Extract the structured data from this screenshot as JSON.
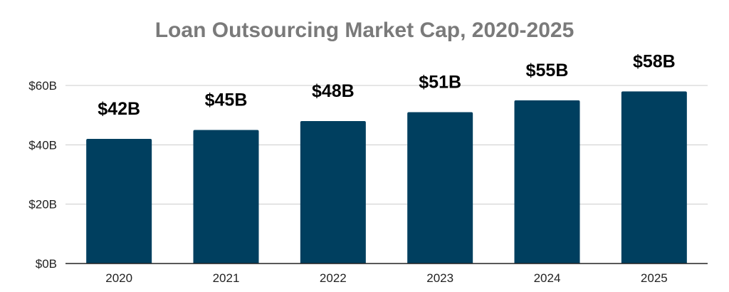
{
  "chart_data": {
    "type": "bar",
    "title": "Loan Outsourcing Market Cap, 2020-2025",
    "xlabel": "",
    "ylabel": "",
    "categories": [
      "2020",
      "2021",
      "2022",
      "2023",
      "2024",
      "2025"
    ],
    "values": [
      42,
      45,
      48,
      51,
      55,
      58
    ],
    "data_labels": [
      "$42B",
      "$45B",
      "$48B",
      "$51B",
      "$55B",
      "$58B"
    ],
    "ylim": [
      0,
      60
    ],
    "y_ticks": [
      0,
      20,
      40,
      60
    ],
    "y_tick_labels": [
      "$0B",
      "$20B",
      "$40B",
      "$60B"
    ],
    "grid": true,
    "legend": "none",
    "colors": {
      "bar": "#003f5f",
      "title": "#7a7a7a",
      "grid": "#cccccc",
      "axis": "#222222"
    }
  }
}
